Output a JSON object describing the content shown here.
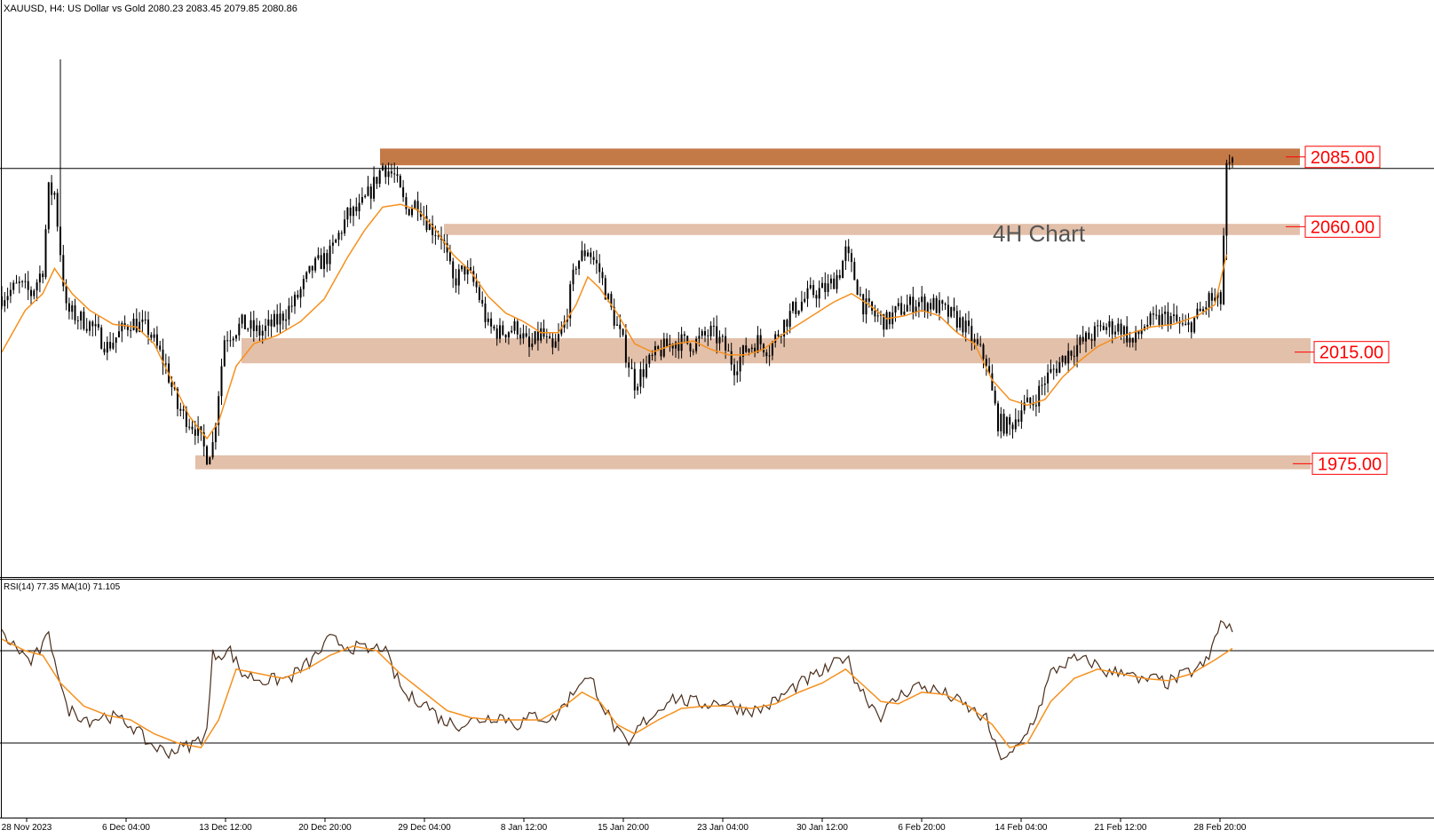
{
  "header": {
    "symbol_info": "XAUUSD, H4:  US Dollar vs Gold  2080.23 2083.45 2079.85 2080.86"
  },
  "annotation": {
    "chart_label": "4H Chart"
  },
  "rsi_panel": {
    "title": "RSI(14) 77.35 MA(10) 71.105"
  },
  "colors": {
    "resistance_strong": "#c47a47",
    "zone": "#e2bda5",
    "ma_line": "#f5901e",
    "rsi_line": "#4a2e1c",
    "candle": "#000000",
    "label_text": "#ff0000",
    "label_border": "#ff0000"
  },
  "chart_data": [
    {
      "type": "candlestick",
      "symbol": "XAUUSD",
      "timeframe": "H4",
      "ylim": [
        1935,
        2140
      ],
      "x_ticks": [
        "28 Nov 2023",
        "6 Dec 04:00",
        "13 Dec 12:00",
        "20 Dec 20:00",
        "29 Dec 04:00",
        "8 Jan 12:00",
        "15 Jan 20:00",
        "23 Jan 04:00",
        "30 Jan 12:00",
        "6 Feb 20:00",
        "14 Feb 04:00",
        "21 Feb 12:00",
        "28 Feb 20:00"
      ],
      "close_path": [
        [
          0,
          2035
        ],
        [
          6,
          2039
        ],
        [
          10,
          2036
        ],
        [
          14,
          2045
        ],
        [
          16,
          2073
        ],
        [
          18,
          2072
        ],
        [
          22,
          2030
        ],
        [
          30,
          2025
        ],
        [
          36,
          2017
        ],
        [
          44,
          2026
        ],
        [
          50,
          2023
        ],
        [
          56,
          2010
        ],
        [
          60,
          1995
        ],
        [
          66,
          1988
        ],
        [
          70,
          1978
        ],
        [
          72,
          1982
        ],
        [
          76,
          2020
        ],
        [
          82,
          2025
        ],
        [
          88,
          2022
        ],
        [
          94,
          2026
        ],
        [
          100,
          2033
        ],
        [
          106,
          2045
        ],
        [
          112,
          2050
        ],
        [
          118,
          2064
        ],
        [
          122,
          2066
        ],
        [
          126,
          2073
        ],
        [
          130,
          2082
        ],
        [
          134,
          2078
        ],
        [
          138,
          2066
        ],
        [
          142,
          2069
        ],
        [
          146,
          2060
        ],
        [
          150,
          2057
        ],
        [
          154,
          2040
        ],
        [
          158,
          2045
        ],
        [
          162,
          2038
        ],
        [
          166,
          2024
        ],
        [
          170,
          2022
        ],
        [
          176,
          2024
        ],
        [
          180,
          2016
        ],
        [
          184,
          2022
        ],
        [
          188,
          2015
        ],
        [
          192,
          2025
        ],
        [
          196,
          2047
        ],
        [
          200,
          2052
        ],
        [
          204,
          2044
        ],
        [
          208,
          2030
        ],
        [
          212,
          2018
        ],
        [
          216,
          2004
        ],
        [
          220,
          2010
        ],
        [
          224,
          2015
        ],
        [
          230,
          2019
        ],
        [
          236,
          2018
        ],
        [
          242,
          2022
        ],
        [
          246,
          2018
        ],
        [
          250,
          2010
        ],
        [
          254,
          2016
        ],
        [
          258,
          2019
        ],
        [
          262,
          2016
        ],
        [
          266,
          2024
        ],
        [
          270,
          2030
        ],
        [
          276,
          2036
        ],
        [
          282,
          2038
        ],
        [
          286,
          2044
        ],
        [
          288,
          2051
        ],
        [
          290,
          2045
        ],
        [
          294,
          2032
        ],
        [
          298,
          2028
        ],
        [
          302,
          2026
        ],
        [
          306,
          2030
        ],
        [
          312,
          2033
        ],
        [
          318,
          2032
        ],
        [
          324,
          2028
        ],
        [
          328,
          2025
        ],
        [
          332,
          2018
        ],
        [
          336,
          2012
        ],
        [
          338,
          2000
        ],
        [
          340,
          1990
        ],
        [
          344,
          1988
        ],
        [
          348,
          1995
        ],
        [
          352,
          1997
        ],
        [
          356,
          2005
        ],
        [
          360,
          2010
        ],
        [
          364,
          2015
        ],
        [
          368,
          2018
        ],
        [
          372,
          2021
        ],
        [
          376,
          2024
        ],
        [
          382,
          2024
        ],
        [
          386,
          2018
        ],
        [
          390,
          2025
        ],
        [
          394,
          2026
        ],
        [
          398,
          2028
        ],
        [
          404,
          2023
        ],
        [
          408,
          2028
        ],
        [
          410,
          2030
        ],
        [
          412,
          2034
        ],
        [
          416,
          2033
        ],
        [
          418,
          2080
        ],
        [
          420,
          2082
        ]
      ],
      "ma_path": [
        [
          0,
          2015
        ],
        [
          8,
          2030
        ],
        [
          14,
          2036
        ],
        [
          18,
          2045
        ],
        [
          24,
          2036
        ],
        [
          30,
          2030
        ],
        [
          38,
          2025
        ],
        [
          46,
          2024
        ],
        [
          52,
          2018
        ],
        [
          58,
          2005
        ],
        [
          64,
          1992
        ],
        [
          70,
          1984
        ],
        [
          74,
          1990
        ],
        [
          80,
          2010
        ],
        [
          86,
          2018
        ],
        [
          94,
          2021
        ],
        [
          102,
          2026
        ],
        [
          110,
          2034
        ],
        [
          118,
          2049
        ],
        [
          124,
          2059
        ],
        [
          130,
          2067
        ],
        [
          136,
          2068
        ],
        [
          142,
          2066
        ],
        [
          148,
          2059
        ],
        [
          154,
          2050
        ],
        [
          160,
          2044
        ],
        [
          166,
          2035
        ],
        [
          172,
          2029
        ],
        [
          178,
          2026
        ],
        [
          184,
          2022
        ],
        [
          190,
          2022
        ],
        [
          196,
          2032
        ],
        [
          200,
          2042
        ],
        [
          204,
          2038
        ],
        [
          210,
          2029
        ],
        [
          216,
          2018
        ],
        [
          222,
          2015
        ],
        [
          230,
          2018
        ],
        [
          236,
          2019
        ],
        [
          242,
          2016
        ],
        [
          248,
          2014
        ],
        [
          254,
          2014
        ],
        [
          260,
          2016
        ],
        [
          266,
          2021
        ],
        [
          272,
          2025
        ],
        [
          278,
          2029
        ],
        [
          284,
          2033
        ],
        [
          290,
          2036
        ],
        [
          296,
          2032
        ],
        [
          302,
          2027
        ],
        [
          308,
          2028
        ],
        [
          314,
          2030
        ],
        [
          320,
          2028
        ],
        [
          326,
          2022
        ],
        [
          332,
          2018
        ],
        [
          338,
          2005
        ],
        [
          344,
          1998
        ],
        [
          350,
          1996
        ],
        [
          356,
          1998
        ],
        [
          362,
          2006
        ],
        [
          368,
          2012
        ],
        [
          374,
          2017
        ],
        [
          380,
          2020
        ],
        [
          386,
          2022
        ],
        [
          392,
          2024
        ],
        [
          400,
          2025
        ],
        [
          408,
          2028
        ],
        [
          414,
          2032
        ],
        [
          418,
          2050
        ]
      ],
      "series": [
        {
          "name": "MA",
          "color": "#f5901e"
        }
      ],
      "levels": [
        {
          "label": "2085.00",
          "price": 2085,
          "zone_bottom": 2082,
          "zone_top": 2088,
          "style": "strong"
        },
        {
          "label": "2060.00",
          "price": 2060,
          "zone_bottom": 2057,
          "zone_top": 2061,
          "style": "zone"
        },
        {
          "label": "2015.00",
          "price": 2015,
          "zone_bottom": 2011,
          "zone_top": 2020,
          "style": "zone"
        },
        {
          "label": "1975.00",
          "price": 1975,
          "zone_bottom": 1973,
          "zone_top": 1978,
          "style": "zone"
        }
      ],
      "current_price": 2080.86
    },
    {
      "type": "line",
      "indicator": "RSI(14)",
      "ylim": [
        0,
        100
      ],
      "rsi_value": 77.35,
      "ma_value": 71.105,
      "reference_levels": [
        70,
        30
      ],
      "rsi_path": [
        [
          0,
          77
        ],
        [
          6,
          70
        ],
        [
          10,
          65
        ],
        [
          14,
          72
        ],
        [
          16,
          76
        ],
        [
          18,
          68
        ],
        [
          22,
          45
        ],
        [
          30,
          40
        ],
        [
          36,
          42
        ],
        [
          44,
          38
        ],
        [
          50,
          30
        ],
        [
          56,
          26
        ],
        [
          62,
          28
        ],
        [
          66,
          30
        ],
        [
          70,
          35
        ],
        [
          72,
          68
        ],
        [
          78,
          70
        ],
        [
          82,
          60
        ],
        [
          90,
          57
        ],
        [
          98,
          58
        ],
        [
          106,
          66
        ],
        [
          112,
          75
        ],
        [
          118,
          72
        ],
        [
          122,
          71
        ],
        [
          126,
          70
        ],
        [
          130,
          72
        ],
        [
          134,
          60
        ],
        [
          138,
          50
        ],
        [
          144,
          48
        ],
        [
          150,
          40
        ],
        [
          156,
          38
        ],
        [
          162,
          40
        ],
        [
          170,
          42
        ],
        [
          176,
          38
        ],
        [
          182,
          42
        ],
        [
          188,
          40
        ],
        [
          194,
          50
        ],
        [
          198,
          58
        ],
        [
          202,
          56
        ],
        [
          206,
          44
        ],
        [
          210,
          35
        ],
        [
          214,
          28
        ],
        [
          218,
          38
        ],
        [
          224,
          44
        ],
        [
          228,
          50
        ],
        [
          234,
          48
        ],
        [
          240,
          47
        ],
        [
          246,
          48
        ],
        [
          252,
          45
        ],
        [
          258,
          44
        ],
        [
          264,
          48
        ],
        [
          270,
          54
        ],
        [
          276,
          58
        ],
        [
          282,
          62
        ],
        [
          288,
          68
        ],
        [
          292,
          56
        ],
        [
          296,
          48
        ],
        [
          300,
          42
        ],
        [
          306,
          50
        ],
        [
          312,
          55
        ],
        [
          318,
          53
        ],
        [
          324,
          50
        ],
        [
          330,
          45
        ],
        [
          336,
          40
        ],
        [
          340,
          25
        ],
        [
          344,
          24
        ],
        [
          348,
          30
        ],
        [
          354,
          45
        ],
        [
          358,
          60
        ],
        [
          362,
          64
        ],
        [
          366,
          66
        ],
        [
          372,
          65
        ],
        [
          378,
          60
        ],
        [
          384,
          62
        ],
        [
          388,
          56
        ],
        [
          392,
          58
        ],
        [
          398,
          56
        ],
        [
          404,
          60
        ],
        [
          408,
          62
        ],
        [
          412,
          66
        ],
        [
          414,
          76
        ],
        [
          416,
          82
        ],
        [
          420,
          78
        ]
      ],
      "ma_path": [
        [
          0,
          75
        ],
        [
          8,
          70
        ],
        [
          14,
          68
        ],
        [
          20,
          56
        ],
        [
          28,
          46
        ],
        [
          36,
          42
        ],
        [
          44,
          40
        ],
        [
          52,
          34
        ],
        [
          60,
          30
        ],
        [
          68,
          28
        ],
        [
          74,
          40
        ],
        [
          80,
          62
        ],
        [
          88,
          60
        ],
        [
          96,
          58
        ],
        [
          104,
          62
        ],
        [
          112,
          68
        ],
        [
          120,
          72
        ],
        [
          128,
          70
        ],
        [
          136,
          60
        ],
        [
          144,
          52
        ],
        [
          152,
          44
        ],
        [
          160,
          41
        ],
        [
          168,
          40
        ],
        [
          176,
          40
        ],
        [
          184,
          40
        ],
        [
          192,
          46
        ],
        [
          198,
          52
        ],
        [
          204,
          48
        ],
        [
          210,
          38
        ],
        [
          216,
          34
        ],
        [
          224,
          40
        ],
        [
          232,
          45
        ],
        [
          240,
          46
        ],
        [
          248,
          46
        ],
        [
          256,
          45
        ],
        [
          264,
          47
        ],
        [
          272,
          52
        ],
        [
          280,
          56
        ],
        [
          288,
          62
        ],
        [
          294,
          55
        ],
        [
          300,
          48
        ],
        [
          306,
          47
        ],
        [
          314,
          52
        ],
        [
          322,
          51
        ],
        [
          330,
          46
        ],
        [
          338,
          38
        ],
        [
          344,
          28
        ],
        [
          350,
          30
        ],
        [
          358,
          48
        ],
        [
          366,
          58
        ],
        [
          374,
          62
        ],
        [
          382,
          60
        ],
        [
          390,
          58
        ],
        [
          398,
          57
        ],
        [
          406,
          60
        ],
        [
          414,
          66
        ],
        [
          420,
          71
        ]
      ]
    }
  ]
}
